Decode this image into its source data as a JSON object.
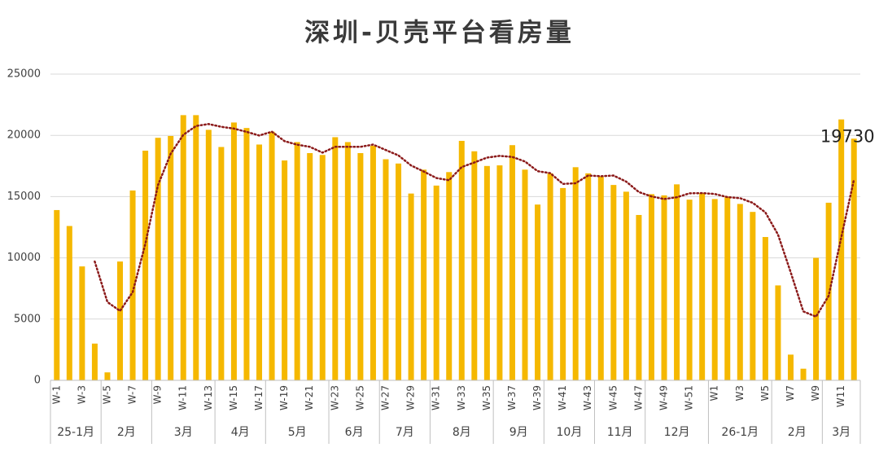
{
  "chart_data": {
    "type": "bar",
    "title": "深圳-贝壳平台看房量",
    "color": "#f5b800",
    "categories": [
      "W-1",
      null,
      "W-3",
      null,
      "W-5",
      null,
      "W-7",
      null,
      "W-9",
      null,
      "W-11",
      null,
      "W-13",
      null,
      "W-15",
      null,
      "W-17",
      null,
      "W-19",
      null,
      "W-21",
      null,
      "W-23",
      null,
      "W-25",
      null,
      "W-27",
      null,
      "W-29",
      null,
      "W-31",
      null,
      "W-33",
      null,
      "W-35",
      null,
      "W-37",
      null,
      "W-39",
      null,
      "W-41",
      null,
      "W-43",
      null,
      "W-45",
      null,
      "W-47",
      null,
      "W-49",
      null,
      "W-51",
      null,
      "W1",
      null,
      "W3",
      null,
      "W5",
      null,
      "W7",
      null,
      "W9",
      null,
      "W11",
      null
    ],
    "values": [
      13900,
      12600,
      9300,
      3000,
      650,
      9700,
      15500,
      18750,
      19800,
      19950,
      21650,
      21650,
      20450,
      19050,
      21050,
      20600,
      19250,
      20300,
      17950,
      19450,
      18550,
      18400,
      19850,
      19450,
      18550,
      19150,
      18050,
      17700,
      15250,
      17200,
      15900,
      17000,
      19550,
      18700,
      17500,
      17550,
      19200,
      17200,
      14350,
      16900,
      15700,
      17400,
      16900,
      16650,
      15950,
      15400,
      13500,
      15200,
      15100,
      16000,
      14750,
      15300,
      14800,
      15000,
      14400,
      13750,
      11700,
      7750,
      2100,
      950,
      10000,
      14500,
      21300,
      19730
    ],
    "value_labels": [
      null,
      null,
      null,
      null,
      null,
      null,
      null,
      null,
      null,
      null,
      null,
      null,
      null,
      null,
      null,
      null,
      null,
      null,
      null,
      null,
      null,
      null,
      null,
      null,
      null,
      null,
      null,
      null,
      null,
      null,
      null,
      null,
      null,
      null,
      null,
      null,
      null,
      null,
      null,
      null,
      null,
      null,
      null,
      null,
      null,
      null,
      null,
      null,
      null,
      null,
      null,
      null,
      null,
      null,
      null,
      null,
      null,
      null,
      null,
      null,
      null,
      null,
      null,
      "19730"
    ],
    "trendline": {
      "color": "#8b1a1a",
      "values": [
        null,
        null,
        null,
        9700,
        6388,
        5663,
        7213,
        11150,
        15938,
        18500,
        20038,
        20763,
        20925,
        20700,
        20550,
        20288,
        19988,
        20300,
        19525,
        19238,
        19063,
        18588,
        19063,
        19063,
        19063,
        19250,
        18800,
        18363,
        17538,
        17050,
        16513,
        16338,
        17413,
        17788,
        18188,
        18325,
        18238,
        17863,
        17075,
        16913,
        16038,
        16088,
        16725,
        16663,
        16725,
        16225,
        15375,
        15013,
        14800,
        14950,
        15263,
        15288,
        15213,
        14963,
        14875,
        14488,
        13713,
        11900,
        8825,
        5625,
        5200,
        6888,
        11688,
        16383
      ]
    },
    "groups": [
      {
        "label": "25-1月",
        "count": 4
      },
      {
        "label": "2月",
        "count": 4
      },
      {
        "label": "3月",
        "count": 5
      },
      {
        "label": "4月",
        "count": 4
      },
      {
        "label": "5月",
        "count": 5
      },
      {
        "label": "6月",
        "count": 4
      },
      {
        "label": "7月",
        "count": 4
      },
      {
        "label": "8月",
        "count": 5
      },
      {
        "label": "9月",
        "count": 4
      },
      {
        "label": "10月",
        "count": 4
      },
      {
        "label": "11月",
        "count": 4
      },
      {
        "label": "12月",
        "count": 5
      },
      {
        "label": "26-1月",
        "count": 5
      },
      {
        "label": "2月",
        "count": 4
      },
      {
        "label": "3月",
        "count": 3
      }
    ],
    "ylim": [
      0,
      25000
    ],
    "yticks": [
      0,
      5000,
      10000,
      15000,
      20000,
      25000
    ],
    "grid": true
  }
}
